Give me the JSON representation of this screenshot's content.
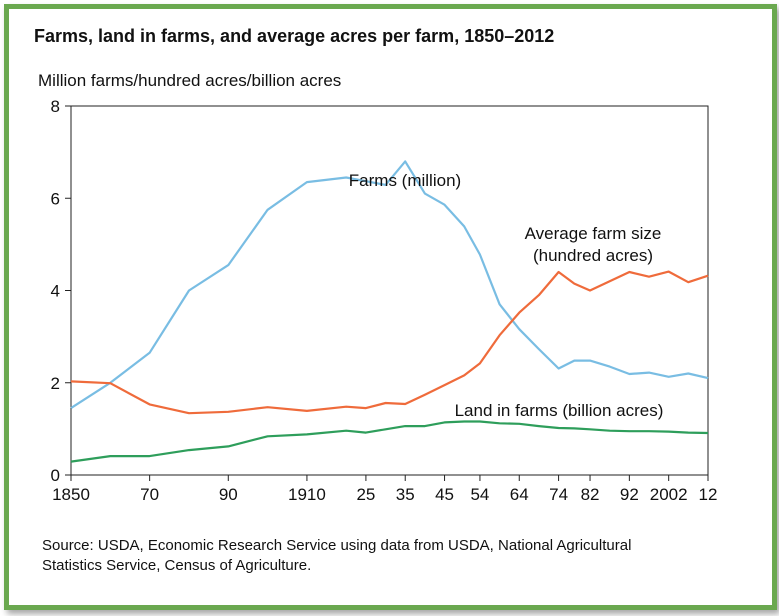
{
  "chart_data": {
    "type": "line",
    "title": "Farms, land in farms, and average acres per farm, 1850–2012",
    "ylabel": "Million farms/hundred acres/billion acres",
    "source": "Source: USDA, Economic Research Service using data from USDA, National Agricultural Statistics Service, Census of Agriculture.",
    "ylim": [
      0,
      8
    ],
    "yticks": [
      "0",
      "2",
      "4",
      "6",
      "8"
    ],
    "xlim": [
      1850,
      2012
    ],
    "xticks": [
      {
        "year": 1850,
        "label": "1850"
      },
      {
        "year": 1870,
        "label": "70"
      },
      {
        "year": 1890,
        "label": "90"
      },
      {
        "year": 1910,
        "label": "1910"
      },
      {
        "year": 1925,
        "label": "25"
      },
      {
        "year": 1935,
        "label": "35"
      },
      {
        "year": 1945,
        "label": "45"
      },
      {
        "year": 1954,
        "label": "54"
      },
      {
        "year": 1964,
        "label": "64"
      },
      {
        "year": 1974,
        "label": "74"
      },
      {
        "year": 1982,
        "label": "82"
      },
      {
        "year": 1992,
        "label": "92"
      },
      {
        "year": 2002,
        "label": "2002"
      },
      {
        "year": 2012,
        "label": "12"
      }
    ],
    "x": [
      1850,
      1860,
      1870,
      1880,
      1890,
      1900,
      1910,
      1920,
      1925,
      1930,
      1935,
      1940,
      1945,
      1950,
      1954,
      1959,
      1964,
      1969,
      1974,
      1978,
      1982,
      1987,
      1992,
      1997,
      2002,
      2007,
      2012
    ],
    "series": [
      {
        "name": "Farms (million)",
        "color": "#79bde3",
        "values": [
          1.45,
          2.0,
          2.65,
          4.0,
          4.55,
          5.75,
          6.35,
          6.45,
          6.37,
          6.29,
          6.8,
          6.1,
          5.86,
          5.39,
          4.78,
          3.7,
          3.16,
          2.73,
          2.31,
          2.48,
          2.48,
          2.35,
          2.19,
          2.22,
          2.13,
          2.2,
          2.1
        ]
      },
      {
        "name": "Average farm size (hundred acres)",
        "color": "#ef6b3b",
        "values": [
          2.03,
          1.99,
          1.53,
          1.34,
          1.37,
          1.47,
          1.39,
          1.48,
          1.45,
          1.56,
          1.54,
          1.74,
          1.95,
          2.16,
          2.42,
          3.03,
          3.52,
          3.9,
          4.4,
          4.15,
          4.0,
          4.2,
          4.4,
          4.3,
          4.41,
          4.18,
          4.32
        ]
      },
      {
        "name": "Land in farms (billion acres)",
        "color": "#2e9e5b",
        "values": [
          0.29,
          0.41,
          0.41,
          0.54,
          0.62,
          0.84,
          0.88,
          0.96,
          0.92,
          0.99,
          1.06,
          1.06,
          1.14,
          1.16,
          1.16,
          1.12,
          1.11,
          1.06,
          1.02,
          1.01,
          0.99,
          0.96,
          0.95,
          0.95,
          0.94,
          0.92,
          0.91
        ]
      }
    ],
    "annotations": [
      {
        "series": 0,
        "lines": [
          "Farms (million)"
        ]
      },
      {
        "series": 1,
        "lines": [
          "Average farm size",
          "(hundred acres)"
        ]
      },
      {
        "series": 2,
        "lines": [
          "Land in farms (billion acres)"
        ]
      }
    ]
  }
}
